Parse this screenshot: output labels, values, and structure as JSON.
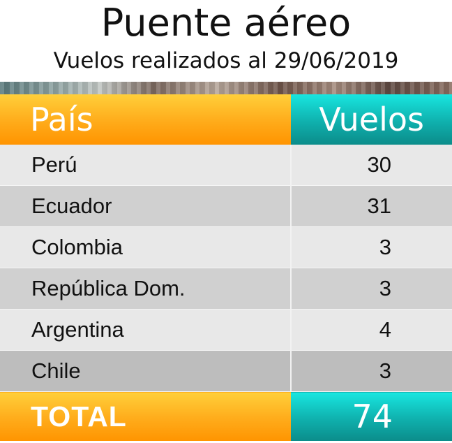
{
  "title": "Puente aéreo",
  "subtitle": "Vuelos realizados al 29/06/2019",
  "chart_data": {
    "type": "table",
    "title": "Puente aéreo",
    "subtitle": "Vuelos realizados al 29/06/2019",
    "columns": [
      "País",
      "Vuelos"
    ],
    "rows": [
      {
        "pais": "Perú",
        "vuelos": 30
      },
      {
        "pais": "Ecuador",
        "vuelos": 31
      },
      {
        "pais": "Colombia",
        "vuelos": 3
      },
      {
        "pais": "República Dom.",
        "vuelos": 3
      },
      {
        "pais": "Argentina",
        "vuelos": 4
      },
      {
        "pais": "Chile",
        "vuelos": 3
      }
    ],
    "total": {
      "label": "TOTAL",
      "value": 74
    }
  },
  "colors": {
    "header_left": "#ff9f10",
    "header_right": "#10b0ad",
    "row_light": "#e8e8e8",
    "row_dark": "#d0d0d0"
  }
}
